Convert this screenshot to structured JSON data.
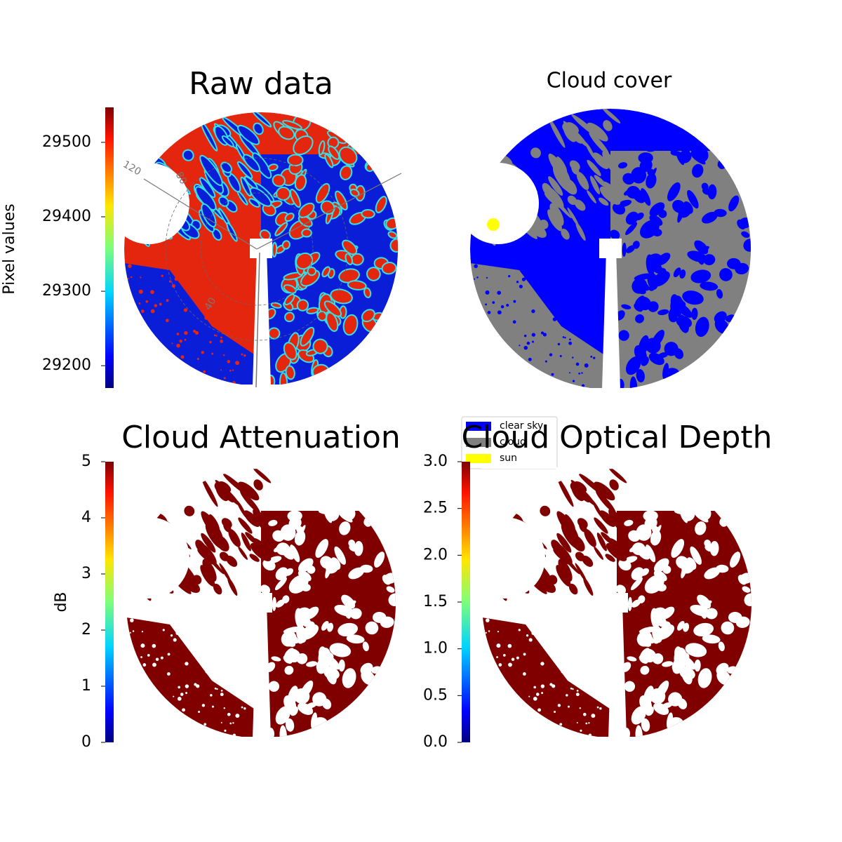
{
  "chart_data": [
    {
      "type": "image",
      "title": "Raw data",
      "ylabel": "Pixel values",
      "ylim": [
        29170,
        29547
      ],
      "yticks": [
        29200,
        29300,
        29400,
        29500
      ],
      "annotations": [
        "120",
        "80",
        "40"
      ]
    },
    {
      "type": "image",
      "title": "Cloud cover",
      "legend": [
        {
          "name": "clear sky",
          "color": "#0000ff"
        },
        {
          "name": "cloud",
          "color": "#808080"
        },
        {
          "name": "sun",
          "color": "#ffff00"
        }
      ]
    },
    {
      "type": "image",
      "title": "Cloud Attenuation",
      "ylabel": "dB",
      "ylim": [
        0,
        5
      ],
      "yticks": [
        0,
        1,
        2,
        3,
        4,
        5
      ]
    },
    {
      "type": "image",
      "title": "Cloud Optical Depth",
      "ylim": [
        0,
        3
      ],
      "yticks": [
        {
          "value": 0,
          "label": "0.0"
        },
        0.5,
        {
          "value": 1,
          "label": "1.0"
        },
        1.5,
        {
          "value": 2,
          "label": "2.0"
        },
        2.5,
        {
          "value": 3,
          "label": "3.0"
        }
      ]
    }
  ]
}
